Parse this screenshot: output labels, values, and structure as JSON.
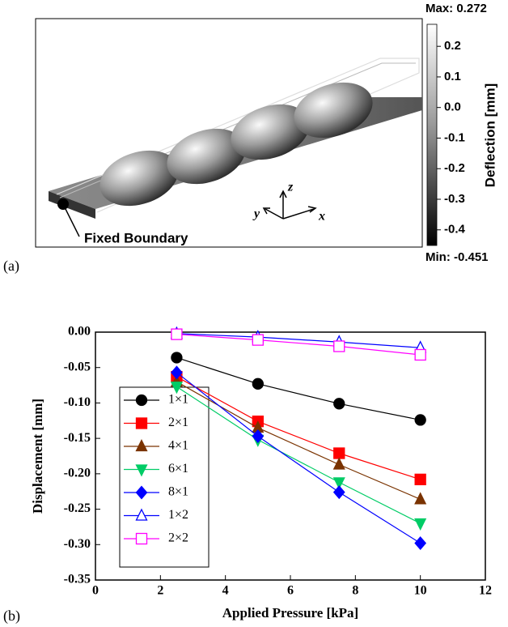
{
  "panel_a": {
    "label": "(a)",
    "annotation": "Fixed Boundary",
    "axes": [
      "z",
      "y",
      "x"
    ],
    "colorbar": {
      "title": "Deflection [mm]",
      "max_label": "Max: 0.272",
      "min_label": "Min: -0.451",
      "ylim": [
        -0.451,
        0.272
      ],
      "yticks": [
        0.2,
        0.1,
        {
          "value": 0,
          "label": "0.0"
        },
        -0.1,
        -0.2,
        -0.3,
        -0.4
      ]
    }
  },
  "chart_data": {
    "type": "line",
    "panel_label": "(b)",
    "x_label": "Applied Pressure [kPa]",
    "y_label": "Displacement [mm]",
    "x": [
      2.5,
      5,
      7.5,
      10
    ],
    "xlim": [
      0,
      12
    ],
    "xticks": [
      0,
      2,
      4,
      6,
      8,
      10,
      12
    ],
    "ylim": [
      -0.35,
      0
    ],
    "yticks": [
      {
        "value": 0,
        "label": "0.00"
      },
      -0.05,
      {
        "value": -0.1,
        "label": "-0.10"
      },
      -0.15,
      {
        "value": -0.2,
        "label": "-0.20"
      },
      -0.25,
      {
        "value": -0.3,
        "label": "-0.30"
      },
      -0.35
    ],
    "legend": "lower-left",
    "series": [
      {
        "name": "1×1",
        "color": "#000000",
        "marker": "circle",
        "filled": true,
        "values": [
          -0.036,
          -0.073,
          -0.101,
          -0.124
        ]
      },
      {
        "name": "2×1",
        "color": "#ff0000",
        "marker": "square",
        "filled": true,
        "values": [
          -0.063,
          -0.126,
          -0.171,
          -0.208
        ]
      },
      {
        "name": "4×1",
        "color": "#7a3300",
        "marker": "triangle-up",
        "filled": true,
        "values": [
          -0.07,
          -0.135,
          -0.187,
          -0.236
        ]
      },
      {
        "name": "6×1",
        "color": "#00cc66",
        "marker": "triangle-down",
        "filled": true,
        "values": [
          -0.077,
          -0.152,
          -0.212,
          -0.27
        ]
      },
      {
        "name": "8×1",
        "color": "#0000ff",
        "marker": "diamond",
        "filled": true,
        "values": [
          -0.057,
          -0.147,
          -0.226,
          -0.298
        ]
      },
      {
        "name": "1×2",
        "color": "#0000ff",
        "marker": "triangle-up",
        "filled": false,
        "values": [
          -0.002,
          -0.007,
          -0.014,
          -0.022
        ]
      },
      {
        "name": "2×2",
        "color": "#ff00ff",
        "marker": "square",
        "filled": false,
        "values": [
          -0.003,
          -0.011,
          -0.02,
          -0.032
        ]
      }
    ]
  }
}
